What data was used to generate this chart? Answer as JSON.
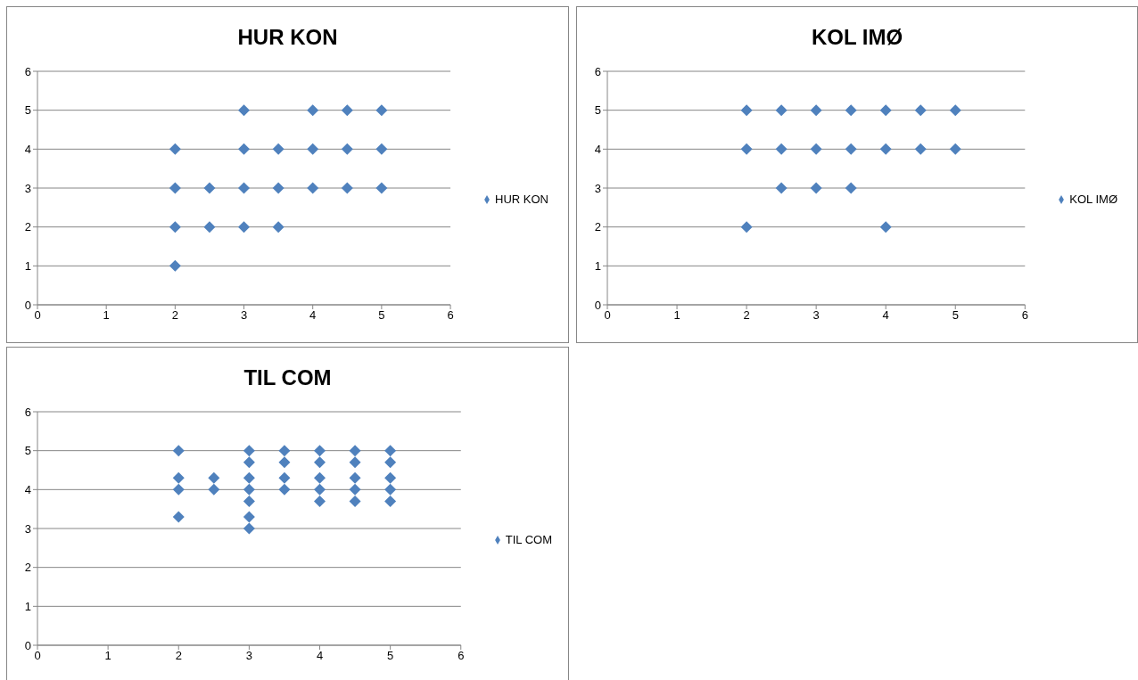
{
  "chart_data": [
    {
      "type": "scatter",
      "title": "HUR KON",
      "series": [
        {
          "name": "HUR KON",
          "color": "#4f81bd",
          "x": [
            3,
            4,
            4.5,
            5,
            2,
            3,
            3.5,
            4,
            4.5,
            5,
            2,
            2.5,
            3,
            3.5,
            4,
            4.5,
            5,
            2,
            2.5,
            3,
            3.5,
            2
          ],
          "values": [
            5,
            5,
            5,
            5,
            4,
            4,
            4,
            4,
            4,
            4,
            3,
            3,
            3,
            3,
            3,
            3,
            3,
            2,
            2,
            2,
            2,
            1
          ]
        }
      ],
      "xlim": [
        0,
        6
      ],
      "ylim": [
        0,
        6
      ],
      "xticks": [
        0,
        1,
        2,
        3,
        4,
        5,
        6
      ],
      "yticks": [
        0,
        1,
        2,
        3,
        4,
        5,
        6
      ],
      "grid": "y",
      "legend": "right",
      "marker": "diamond"
    },
    {
      "type": "scatter",
      "title": "KOL IMØ",
      "series": [
        {
          "name": "KOL IMØ",
          "color": "#4f81bd",
          "x": [
            2,
            2.5,
            3,
            3.5,
            4,
            4.5,
            5,
            2,
            2.5,
            3,
            3.5,
            4,
            4.5,
            5,
            2.5,
            3,
            3.5,
            2,
            4
          ],
          "values": [
            5,
            5,
            5,
            5,
            5,
            5,
            5,
            4,
            4,
            4,
            4,
            4,
            4,
            4,
            3,
            3,
            3,
            2,
            2
          ]
        }
      ],
      "xlim": [
        0,
        6
      ],
      "ylim": [
        0,
        6
      ],
      "xticks": [
        0,
        1,
        2,
        3,
        4,
        5,
        6
      ],
      "yticks": [
        0,
        1,
        2,
        3,
        4,
        5,
        6
      ],
      "grid": "y",
      "legend": "right",
      "marker": "diamond"
    },
    {
      "type": "scatter",
      "title": "TIL COM",
      "series": [
        {
          "name": "TIL COM",
          "color": "#4f81bd",
          "x": [
            2,
            2,
            2,
            2,
            2.5,
            2.5,
            3,
            3,
            3,
            3,
            3,
            3,
            3,
            3.5,
            3.5,
            3.5,
            3.5,
            4,
            4,
            4,
            4,
            4,
            4.5,
            4.5,
            4.5,
            4.5,
            4.5,
            5,
            5,
            5,
            5,
            5
          ],
          "values": [
            5,
            4.3,
            4,
            3.3,
            4.3,
            4,
            5,
            4.7,
            4.3,
            4,
            3.7,
            3.3,
            3,
            5,
            4.7,
            4.3,
            4,
            5,
            4.7,
            4.3,
            4,
            3.7,
            5,
            4.7,
            4.3,
            4,
            3.7,
            5,
            4.7,
            4.3,
            4,
            3.7
          ]
        }
      ],
      "xlim": [
        0,
        6
      ],
      "ylim": [
        0,
        6
      ],
      "xticks": [
        0,
        1,
        2,
        3,
        4,
        5,
        6
      ],
      "yticks": [
        0,
        1,
        2,
        3,
        4,
        5,
        6
      ],
      "grid": "y",
      "legend": "right",
      "marker": "diamond"
    }
  ]
}
